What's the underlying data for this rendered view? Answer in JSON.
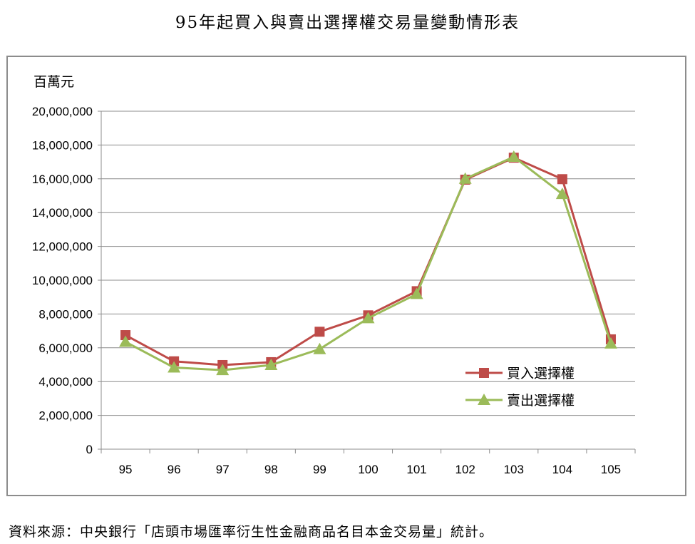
{
  "title": "95年起買入與賣出選擇權交易量變動情形表",
  "source": "資料來源：中央銀行「店頭市場匯率衍生性金融商品名目本金交易量」統計。",
  "chart_data": {
    "type": "line",
    "title": "95年起買入與賣出選擇權交易量變動情形表",
    "ylabel": "百萬元",
    "xlabel": "",
    "categories": [
      "95",
      "96",
      "97",
      "98",
      "99",
      "100",
      "101",
      "102",
      "103",
      "104",
      "105"
    ],
    "ylim": [
      0,
      20000000
    ],
    "yticks": [
      0,
      2000000,
      4000000,
      6000000,
      8000000,
      10000000,
      12000000,
      14000000,
      16000000,
      18000000,
      20000000
    ],
    "ytick_labels": [
      "0",
      "2,000,000",
      "4,000,000",
      "6,000,000",
      "8,000,000",
      "10,000,000",
      "12,000,000",
      "14,000,000",
      "16,000,000",
      "18,000,000",
      "20,000,000"
    ],
    "grid": true,
    "legend_position": "lower-right",
    "series": [
      {
        "name": "買入選擇權",
        "color": "#be4b48",
        "marker": "square",
        "values": [
          6750000,
          5200000,
          4980000,
          5150000,
          6950000,
          7920000,
          9350000,
          15950000,
          17250000,
          15980000,
          6500000
        ]
      },
      {
        "name": "賣出選擇權",
        "color": "#9bbb59",
        "marker": "triangle",
        "values": [
          6350000,
          4830000,
          4680000,
          4980000,
          5920000,
          7750000,
          9180000,
          16000000,
          17300000,
          15100000,
          6250000
        ]
      }
    ]
  }
}
